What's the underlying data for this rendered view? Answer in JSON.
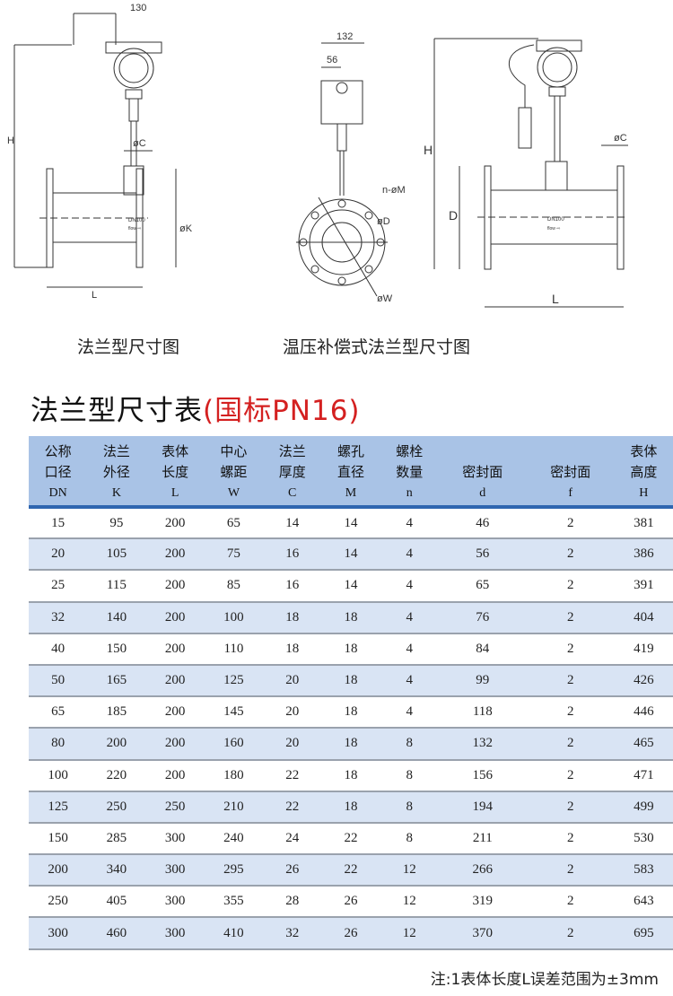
{
  "drawings": {
    "left": {
      "caption": "法兰型尺寸图",
      "dims": {
        "width": "130",
        "height": "H",
        "flange_thickness": "øC",
        "flange_od": "øK",
        "length": "L",
        "model": "DN100",
        "flow": "flow ⇨"
      }
    },
    "middle": {
      "dims": {
        "width": "132",
        "offset": "56",
        "bolt_holes": "n-øM",
        "seal": "øD",
        "center": "øW"
      }
    },
    "right": {
      "caption": "温压补偿式法兰型尺寸图",
      "dims": {
        "height": "H",
        "diameter": "D",
        "flange_thickness": "øC",
        "length": "L",
        "model": "DN100",
        "flow": "flow ⇨"
      }
    }
  },
  "table_title": {
    "main": "法兰型尺寸表",
    "sub": "(国标PN16)"
  },
  "colors": {
    "header_bg": "#a9c3e6",
    "header_rule": "#2f66b0",
    "stripe": "#d9e4f4",
    "subtitle": "#d42020"
  },
  "columns": [
    {
      "l1": "公称",
      "l2": "口径",
      "sym": "DN"
    },
    {
      "l1": "法兰",
      "l2": "外径",
      "sym": "K"
    },
    {
      "l1": "表体",
      "l2": "长度",
      "sym": "L"
    },
    {
      "l1": "中心",
      "l2": "螺距",
      "sym": "W"
    },
    {
      "l1": "法兰",
      "l2": "厚度",
      "sym": "C"
    },
    {
      "l1": "螺孔",
      "l2": "直径",
      "sym": "M"
    },
    {
      "l1": "螺栓",
      "l2": "数量",
      "sym": "n"
    },
    {
      "l1": "",
      "l2": "密封面",
      "sym": "d"
    },
    {
      "l1": "",
      "l2": "密封面",
      "sym": "f"
    },
    {
      "l1": "表体",
      "l2": "高度",
      "sym": "H"
    }
  ],
  "rows": [
    [
      "15",
      "95",
      "200",
      "65",
      "14",
      "14",
      "4",
      "46",
      "2",
      "381"
    ],
    [
      "20",
      "105",
      "200",
      "75",
      "16",
      "14",
      "4",
      "56",
      "2",
      "386"
    ],
    [
      "25",
      "115",
      "200",
      "85",
      "16",
      "14",
      "4",
      "65",
      "2",
      "391"
    ],
    [
      "32",
      "140",
      "200",
      "100",
      "18",
      "18",
      "4",
      "76",
      "2",
      "404"
    ],
    [
      "40",
      "150",
      "200",
      "110",
      "18",
      "18",
      "4",
      "84",
      "2",
      "419"
    ],
    [
      "50",
      "165",
      "200",
      "125",
      "20",
      "18",
      "4",
      "99",
      "2",
      "426"
    ],
    [
      "65",
      "185",
      "200",
      "145",
      "20",
      "18",
      "4",
      "118",
      "2",
      "446"
    ],
    [
      "80",
      "200",
      "200",
      "160",
      "20",
      "18",
      "8",
      "132",
      "2",
      "465"
    ],
    [
      "100",
      "220",
      "200",
      "180",
      "22",
      "18",
      "8",
      "156",
      "2",
      "471"
    ],
    [
      "125",
      "250",
      "250",
      "210",
      "22",
      "18",
      "8",
      "194",
      "2",
      "499"
    ],
    [
      "150",
      "285",
      "300",
      "240",
      "24",
      "22",
      "8",
      "211",
      "2",
      "530"
    ],
    [
      "200",
      "340",
      "300",
      "295",
      "26",
      "22",
      "12",
      "266",
      "2",
      "583"
    ],
    [
      "250",
      "405",
      "300",
      "355",
      "28",
      "26",
      "12",
      "319",
      "2",
      "643"
    ],
    [
      "300",
      "460",
      "300",
      "410",
      "32",
      "26",
      "12",
      "370",
      "2",
      "695"
    ]
  ],
  "note": "注:1表体长度L误差范围为±3mm"
}
